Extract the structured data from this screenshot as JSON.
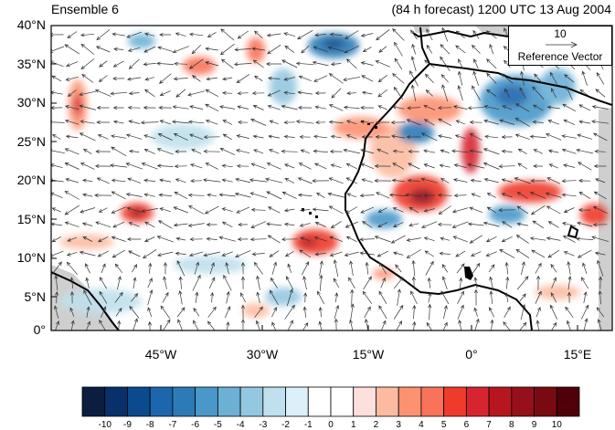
{
  "title_left": "Ensemble 6",
  "title_right": "(84 h forecast) 1200 UTC 13 Aug 2004",
  "reference_vector": {
    "magnitude": "10",
    "label": "Reference Vector"
  },
  "latitude_labels": [
    "40°N",
    "35°N",
    "30°N",
    "25°N",
    "20°N",
    "15°N",
    "10°N",
    "5°N",
    "0°"
  ],
  "longitude_labels": [
    "45°W",
    "30°W",
    "15°W",
    "0°",
    "15°E"
  ],
  "colorbar": {
    "labels": [
      "-10",
      "-9",
      "-8",
      "-7",
      "-6",
      "-5",
      "-4",
      "-3",
      "-2",
      "-1",
      "0",
      "1",
      "2",
      "3",
      "4",
      "5",
      "6",
      "7",
      "8",
      "9",
      "10"
    ],
    "colors": [
      "#0c1e40",
      "#08306b",
      "#0b4a8c",
      "#1c66ad",
      "#2c7bb6",
      "#4a98c9",
      "#6cb0d6",
      "#94c7e0",
      "#bfe0ec",
      "#dcf0fa",
      "#ffffff",
      "#ffffff",
      "#fde0dc",
      "#fcbba1",
      "#fc9272",
      "#f8735a",
      "#ef3b2c",
      "#d62530",
      "#b8161f",
      "#95101a",
      "#7a0a12",
      "#500008"
    ]
  },
  "map_colors": {
    "land": "#cfcfcf",
    "coast": "#000000",
    "arrow": "#333333"
  }
}
